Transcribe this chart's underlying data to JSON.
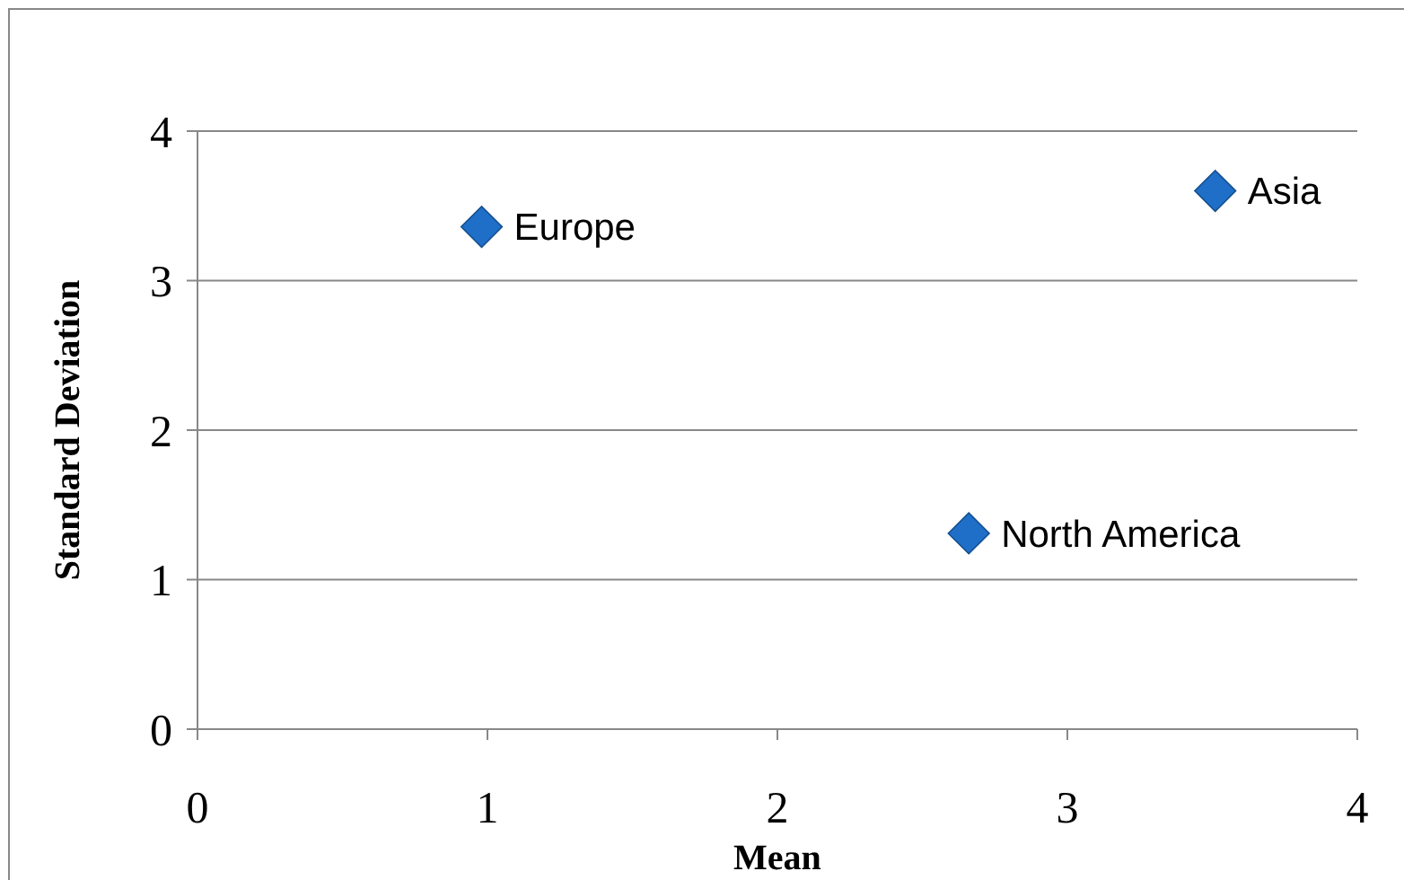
{
  "chart_data": {
    "type": "scatter",
    "xlabel": "Mean",
    "ylabel": "Standard Deviation",
    "x": [
      0.98,
      3.51,
      2.66
    ],
    "values": [
      3.36,
      3.6,
      1.31
    ],
    "color": "#1f6fc8",
    "marker": "diamond",
    "xlim": [
      0,
      4
    ],
    "ylim": [
      0,
      4
    ],
    "xticks": [
      0,
      1,
      2,
      3,
      4
    ],
    "yticks": [
      0,
      1,
      2,
      3,
      4
    ],
    "grid": "y",
    "annotations": [
      {
        "text": "Europe",
        "x": 0.98,
        "y": 3.36
      },
      {
        "text": "Asia",
        "x": 3.51,
        "y": 3.6
      },
      {
        "text": "North America",
        "x": 2.66,
        "y": 1.31
      }
    ]
  }
}
